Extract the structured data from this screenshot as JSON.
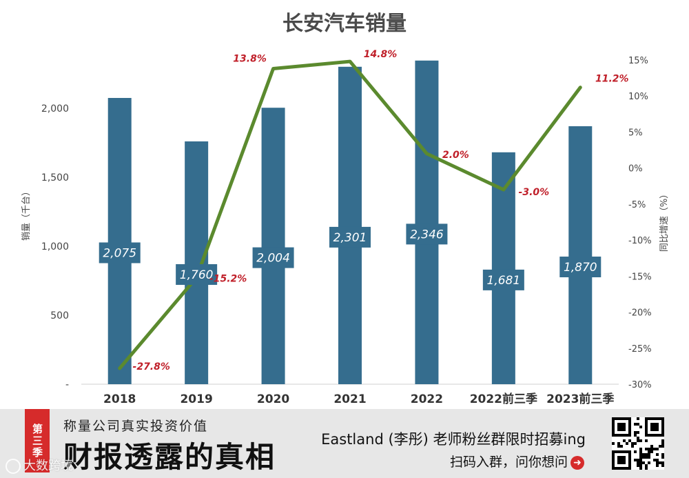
{
  "chart_data": {
    "type": "bar+line",
    "title": "长安汽车销量",
    "categories": [
      "2018",
      "2019",
      "2020",
      "2021",
      "2022",
      "2022前三季",
      "2023前三季"
    ],
    "series": [
      {
        "name": "销量",
        "axis": "left",
        "type": "bar",
        "values": [
          2075,
          1760,
          2004,
          2301,
          2346,
          1681,
          1870
        ],
        "labels": [
          "2,075",
          "1,760",
          "2,004",
          "2,301",
          "2,346",
          "1,681",
          "1,870"
        ]
      },
      {
        "name": "同比增速",
        "axis": "right",
        "type": "line",
        "values": [
          -27.8,
          -15.2,
          13.8,
          14.8,
          2.0,
          -3.0,
          11.2
        ],
        "labels": [
          "-27.8%",
          "-15.2%",
          "13.8%",
          "14.8%",
          "2.0%",
          "-3.0%",
          "11.2%"
        ]
      }
    ],
    "ylabel": "销量（千台）",
    "y2label": "同比增速（%）",
    "ylim": [
      0,
      2500
    ],
    "y2lim": [
      -30,
      17
    ],
    "yticks": [
      0,
      500,
      1000,
      1500,
      2000
    ],
    "ytick_labels": [
      "-",
      "500",
      "1,000",
      "1,500",
      "2,000"
    ],
    "y2ticks": [
      15,
      10,
      5,
      0,
      -5,
      -10,
      -15,
      -20,
      -25,
      -30
    ],
    "y2tick_labels": [
      "15%",
      "10%",
      "5%",
      "0%",
      "-5%",
      "-10%",
      "-15%",
      "-20%",
      "-25%",
      "-30%"
    ],
    "colors": {
      "bar": "#356d8e",
      "line": "#5b8a2e",
      "pct": "#c0202a"
    }
  },
  "footer": {
    "season_badge": "第三季",
    "tagline": "称量公司真实投资价值",
    "brand_title": "财报透露的真相",
    "recruit_text": "Eastland (李彤) 老师粉丝群限时招募ing",
    "scan_text": "扫码入群，问你想问",
    "scan_arrow_icon": "➜",
    "watermark": "大数跨境"
  }
}
